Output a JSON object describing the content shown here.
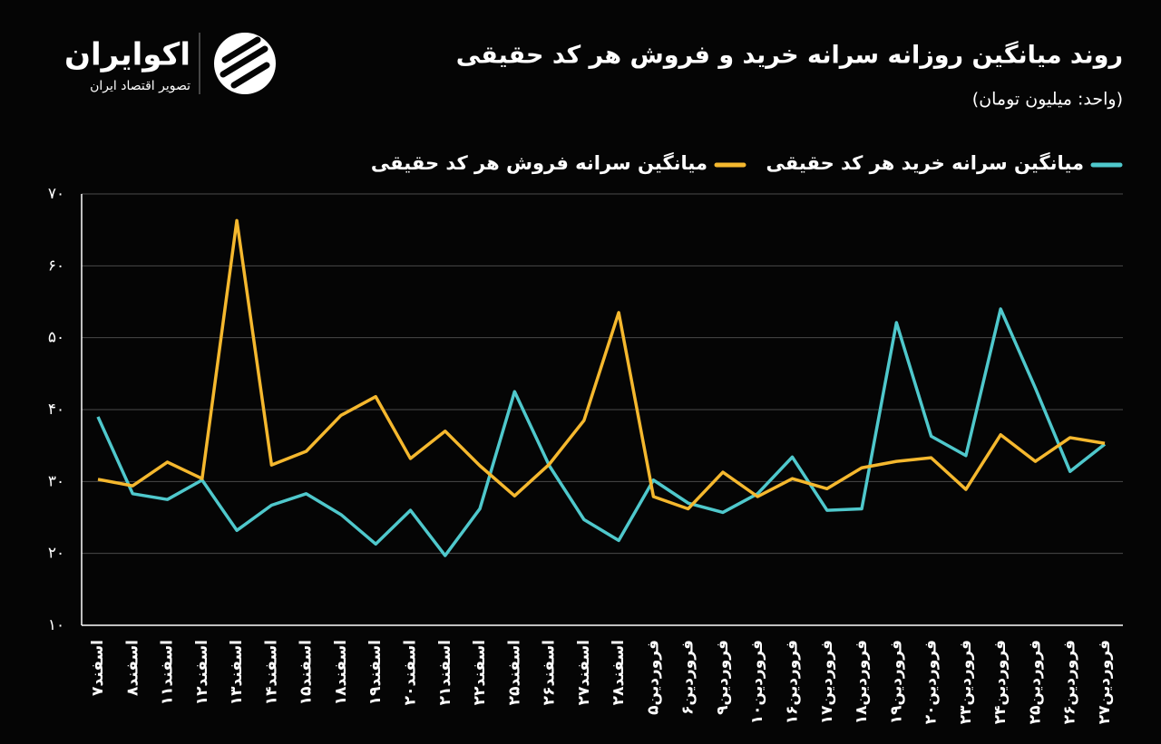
{
  "logo": {
    "name": "اکوایران",
    "tagline": "تصویر اقتصاد ایران"
  },
  "chart_data": {
    "type": "line",
    "title": "روند میانگین روزانه سرانه خرید و فروش هر کد حقیقی",
    "subtitle": "(واحد: میلیون تومان)",
    "categories": [
      "اسفند۷",
      "اسفند۸",
      "اسفند۱۱",
      "اسفند۱۲",
      "اسفند۱۳",
      "اسفند۱۴",
      "اسفند۱۵",
      "اسفند۱۸",
      "اسفند۱۹",
      "اسفند۲۰",
      "اسفند۲۱",
      "اسفند۲۲",
      "اسفند۲۵",
      "اسفند۲۶",
      "اسفند۲۷",
      "اسفند۲۸",
      "فروردین۵",
      "فروردین۶",
      "فروردین۹",
      "فروردین۱۰",
      "فروردین۱۶",
      "فروردین۱۷",
      "فروردین۱۸",
      "فروردین۱۹",
      "فروردین۲۰",
      "فروردین۲۳",
      "فروردین۲۴",
      "فروردین۲۵",
      "فروردین۲۶",
      "فروردین۲۷"
    ],
    "series": [
      {
        "name": "میانگین سرانه خرید هر کد حقیقی",
        "color": "#4fc8cc",
        "values": [
          39.0,
          28.3,
          27.5,
          30.2,
          23.2,
          26.7,
          28.3,
          25.4,
          21.3,
          26.0,
          19.7,
          26.2,
          42.5,
          32.2,
          24.7,
          21.8,
          30.2,
          27.0,
          25.7,
          28.3,
          33.4,
          26.0,
          26.2,
          52.1,
          36.3,
          33.6,
          54.0,
          43.0,
          31.4,
          35.2
        ]
      },
      {
        "name": "میانگین سرانه فروش هر کد حقیقی",
        "color": "#f5b82e",
        "values": [
          30.3,
          29.4,
          32.7,
          30.4,
          66.3,
          32.3,
          34.2,
          39.2,
          41.8,
          33.2,
          37.0,
          32.2,
          28.0,
          32.4,
          38.5,
          53.5,
          27.9,
          26.2,
          31.3,
          27.9,
          30.4,
          29.0,
          31.9,
          32.8,
          33.3,
          28.9,
          36.5,
          32.8,
          36.1,
          35.3
        ]
      }
    ],
    "ylim": [
      10,
      70
    ],
    "yticks": [
      {
        "value": 10,
        "label": "۱۰"
      },
      {
        "value": 20,
        "label": "۲۰"
      },
      {
        "value": 30,
        "label": "۳۰"
      },
      {
        "value": 40,
        "label": "۴۰"
      },
      {
        "value": 50,
        "label": "۵۰"
      },
      {
        "value": 60,
        "label": "۶۰"
      },
      {
        "value": 70,
        "label": "۷۰"
      }
    ],
    "grid": true
  }
}
